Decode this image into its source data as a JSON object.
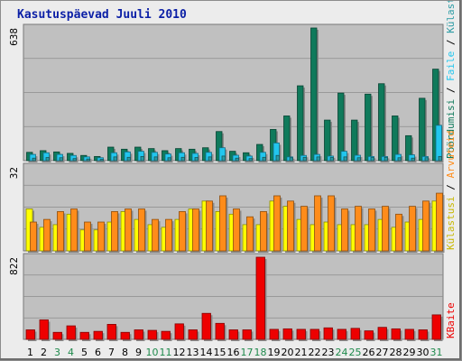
{
  "chart_data": {
    "type": "bar",
    "title": "Kasutuspäevad Juuli 2010",
    "days": [
      "1",
      "2",
      "3",
      "4",
      "5",
      "6",
      "7",
      "8",
      "9",
      "10",
      "11",
      "12",
      "13",
      "14",
      "15",
      "16",
      "17",
      "18",
      "19",
      "20",
      "21",
      "22",
      "23",
      "24",
      "25",
      "26",
      "27",
      "28",
      "29",
      "30",
      "31"
    ],
    "weekend_days": [
      "3",
      "4",
      "10",
      "11",
      "17",
      "18",
      "24",
      "25",
      "31"
    ],
    "panels": [
      {
        "ymax_label": "638",
        "ymax": 638,
        "series": [
          {
            "name": "Pöördumisi",
            "color": "#0f7a5b",
            "values": [
              40,
              48,
              42,
              35,
              25,
              20,
              65,
              55,
              65,
              58,
              48,
              58,
              55,
              62,
              140,
              45,
              38,
              78,
              150,
              215,
              360,
              638,
              195,
              325,
              195,
              320,
              370,
              215,
              120,
              300,
              440
            ]
          },
          {
            "name": "Faile",
            "color": "#22c6ee",
            "values": [
              30,
              38,
              30,
              25,
              18,
              14,
              38,
              42,
              45,
              40,
              32,
              38,
              35,
              40,
              62,
              26,
              22,
              40,
              85,
              18,
              25,
              30,
              22,
              45,
              26,
              20,
              20,
              30,
              28,
              20,
              170
            ]
          },
          {
            "name": "Külastuskülgi",
            "color": "#2a9ba4",
            "values": [
              12,
              15,
              14,
              10,
              8,
              6,
              18,
              16,
              20,
              18,
              14,
              16,
              15,
              18,
              22,
              12,
              10,
              16,
              25,
              14,
              16,
              18,
              15,
              18,
              14,
              15,
              16,
              14,
              12,
              14,
              20
            ]
          }
        ]
      },
      {
        "ymax_label": "32",
        "ymax": 32,
        "series": [
          {
            "name": "Külastusi",
            "color": "#ffff00",
            "values": [
              16,
              9,
              10,
              14,
              8,
              8,
              11,
              15,
              12,
              10,
              9,
              12,
              16,
              19,
              15,
              14,
              10,
              10,
              19,
              17,
              12,
              10,
              11,
              10,
              10,
              10,
              12,
              9,
              11,
              12,
              19
            ]
          },
          {
            "name": "Arvuteid",
            "color": "#ff8c1a",
            "values": [
              11,
              12,
              15,
              16,
              11,
              11,
              15,
              16,
              16,
              12,
              12,
              15,
              16,
              19,
              21,
              16,
              13,
              15,
              21,
              19,
              17,
              21,
              21,
              16,
              17,
              16,
              17,
              14,
              17,
              19,
              22
            ]
          }
        ]
      },
      {
        "ymax_label": "822",
        "ymax": 822,
        "series": [
          {
            "name": "KBaite",
            "color": "#ee0000",
            "values": [
              95,
              195,
              70,
              135,
              70,
              80,
              150,
              70,
              95,
              90,
              80,
              155,
              95,
              260,
              160,
              95,
              95,
              822,
              100,
              105,
              100,
              100,
              115,
              100,
              110,
              85,
              120,
              105,
              100,
              95,
              245
            ]
          }
        ]
      }
    ],
    "legend": {
      "top": [
        "Pöördumisi",
        "Faile",
        "Külastuskülgi"
      ],
      "middle": [
        "Külastusi",
        "Arvuteid"
      ],
      "bottom": [
        "KBaite"
      ],
      "separator": " / "
    }
  }
}
